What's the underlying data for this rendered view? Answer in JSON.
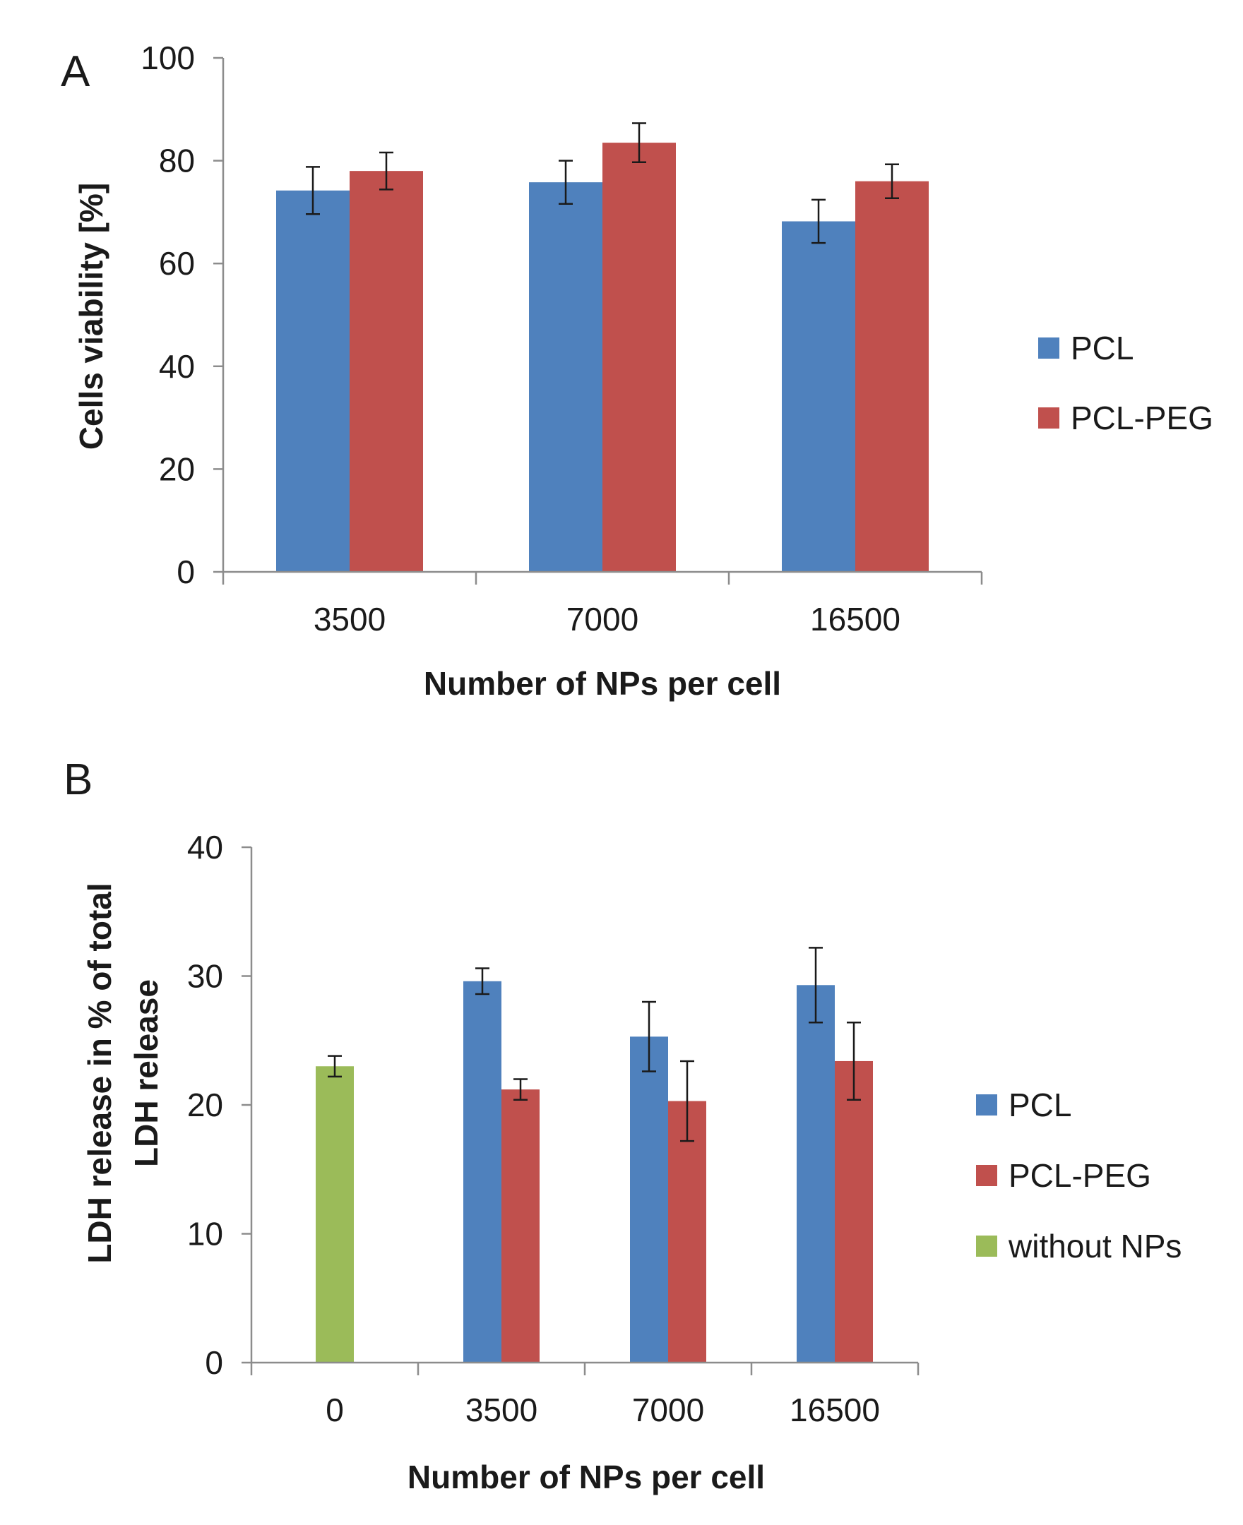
{
  "chart_data": [
    {
      "type": "bar",
      "panel_label": "A",
      "categories": [
        "3500",
        "7000",
        "16500"
      ],
      "series": [
        {
          "name": "PCL",
          "color": "#4f81bd",
          "values": [
            74.2,
            75.8,
            68.2
          ],
          "errors": [
            4.6,
            4.2,
            4.2
          ]
        },
        {
          "name": "PCL-PEG",
          "color": "#c0504d",
          "values": [
            78.0,
            83.5,
            76.0
          ],
          "errors": [
            3.6,
            3.8,
            3.3
          ]
        }
      ],
      "xlabel": "Number of NPs per cell",
      "ylabel": "Cells viability  [%]",
      "ylim": [
        0,
        100
      ],
      "yticks": [
        "0",
        "20",
        "40",
        "60",
        "80",
        "100"
      ],
      "grid": false,
      "legend_position": "right"
    },
    {
      "type": "bar",
      "panel_label": "B",
      "categories": [
        "0",
        "3500",
        "7000",
        "16500"
      ],
      "series": [
        {
          "name": "PCL",
          "color": "#4f81bd",
          "values": [
            null,
            29.6,
            25.3,
            29.3
          ],
          "errors": [
            null,
            1.0,
            2.7,
            2.9
          ]
        },
        {
          "name": "PCL-PEG",
          "color": "#c0504d",
          "values": [
            null,
            21.2,
            20.3,
            23.4
          ],
          "errors": [
            null,
            0.8,
            3.1,
            3.0
          ]
        },
        {
          "name": "without NPs",
          "color": "#9bbb59",
          "values": [
            23.0,
            null,
            null,
            null
          ],
          "errors": [
            0.8,
            null,
            null,
            null
          ]
        }
      ],
      "xlabel": "Number of NPs per cell",
      "ylabel_lines": [
        "LDH release in % of total",
        "LDH release"
      ],
      "ylim": [
        0,
        40
      ],
      "yticks": [
        "0",
        "10",
        "20",
        "30",
        "40"
      ],
      "grid": false,
      "legend_position": "right"
    }
  ]
}
